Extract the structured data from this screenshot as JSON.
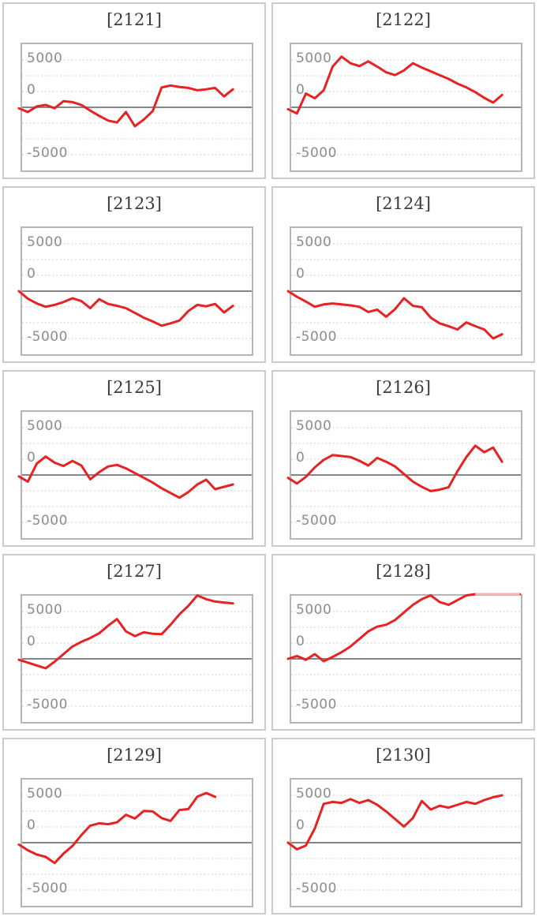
{
  "page": {
    "background_color": "#ffffff"
  },
  "style_colors": {
    "card_border": "#cbcbcb",
    "plot_border": "#b5b5b5",
    "title_text": "#3c3c3c",
    "tick_text": "#8d8d8d"
  },
  "chart_data": {
    "type": "line",
    "description": "Grid of 10 sparkline-style payout balance charts, machine numbers 2121-2130",
    "y_ticks": [
      "5000",
      "0",
      "-5000"
    ],
    "ylim": [
      -6667,
      6667
    ],
    "zero_line": 0,
    "grid": "horizontal dotted lines every 1250 units, solid darker line at 0",
    "legend": "none",
    "x_axis": "none (sequential samples, line starts at left edge at value 0)",
    "gridline_color": "#dedede",
    "zero_line_color": "#868686",
    "series_color": "#e62222",
    "overflow_color": "#f2b4b4",
    "overflow_threshold": 6667,
    "charts": [
      {
        "title": "[2121]",
        "values": [
          -100,
          -500,
          100,
          250,
          -100,
          650,
          550,
          250,
          -350,
          -900,
          -1400,
          -1600,
          -500,
          -2000,
          -1300,
          -400,
          2100,
          2300,
          2150,
          2050,
          1800,
          1900,
          2050,
          1150,
          1900
        ]
      },
      {
        "title": "[2122]",
        "values": [
          -200,
          -650,
          1450,
          950,
          1800,
          4300,
          5350,
          4650,
          4350,
          4850,
          4300,
          3700,
          3400,
          3900,
          4650,
          4200,
          3800,
          3400,
          3000,
          2500,
          2100,
          1600,
          1000,
          500,
          1300
        ]
      },
      {
        "title": "[2123]",
        "values": [
          0,
          -800,
          -1300,
          -1650,
          -1450,
          -1150,
          -750,
          -1050,
          -1800,
          -850,
          -1350,
          -1550,
          -1800,
          -2300,
          -2800,
          -3200,
          -3650,
          -3400,
          -3100,
          -2100,
          -1450,
          -1600,
          -1350,
          -2250,
          -1550
        ]
      },
      {
        "title": "[2124]",
        "values": [
          0,
          -600,
          -1100,
          -1650,
          -1400,
          -1300,
          -1400,
          -1500,
          -1650,
          -2200,
          -1950,
          -2700,
          -1900,
          -750,
          -1550,
          -1700,
          -2800,
          -3400,
          -3700,
          -4050,
          -3300,
          -3700,
          -4050,
          -5000,
          -4550
        ]
      },
      {
        "title": "[2125]",
        "values": [
          -150,
          -700,
          1200,
          1950,
          1300,
          950,
          1480,
          1000,
          -450,
          300,
          900,
          1070,
          700,
          200,
          -300,
          -800,
          -1400,
          -1900,
          -2400,
          -1800,
          -1000,
          -500,
          -1500,
          -1250,
          -1000
        ]
      },
      {
        "title": "[2126]",
        "values": [
          -300,
          -900,
          -200,
          800,
          1600,
          2100,
          2000,
          1900,
          1500,
          1000,
          1800,
          1400,
          900,
          100,
          -700,
          -1250,
          -1700,
          -1550,
          -1300,
          400,
          1900,
          3100,
          2400,
          2900,
          1400
        ]
      },
      {
        "title": "[2127]",
        "values": [
          -100,
          -400,
          -700,
          -1000,
          -300,
          500,
          1300,
          1800,
          2200,
          2700,
          3500,
          4200,
          2900,
          2400,
          2800,
          2650,
          2600,
          3600,
          4700,
          5600,
          6700,
          6300,
          6050,
          5950,
          5850
        ]
      },
      {
        "title": "[2128]",
        "values": [
          0,
          300,
          -100,
          500,
          -250,
          200,
          700,
          1300,
          2100,
          2900,
          3400,
          3600,
          4100,
          4900,
          5700,
          6300,
          6700,
          6000,
          5700,
          6200,
          6700,
          7000,
          7000,
          7000,
          7000,
          7000,
          7000
        ]
      },
      {
        "title": "[2129]",
        "values": [
          -200,
          -800,
          -1250,
          -1500,
          -2150,
          -1150,
          -350,
          800,
          1800,
          2050,
          1950,
          2150,
          2950,
          2550,
          3350,
          3300,
          2600,
          2300,
          3450,
          3550,
          4850,
          5250,
          4840
        ]
      },
      {
        "title": "[2130]",
        "values": [
          0,
          -700,
          -300,
          1500,
          4100,
          4300,
          4200,
          4600,
          4200,
          4500,
          4000,
          3300,
          2500,
          1700,
          2600,
          4400,
          3500,
          3900,
          3700,
          4000,
          4300,
          4100,
          4500,
          4800,
          5000
        ]
      }
    ]
  }
}
